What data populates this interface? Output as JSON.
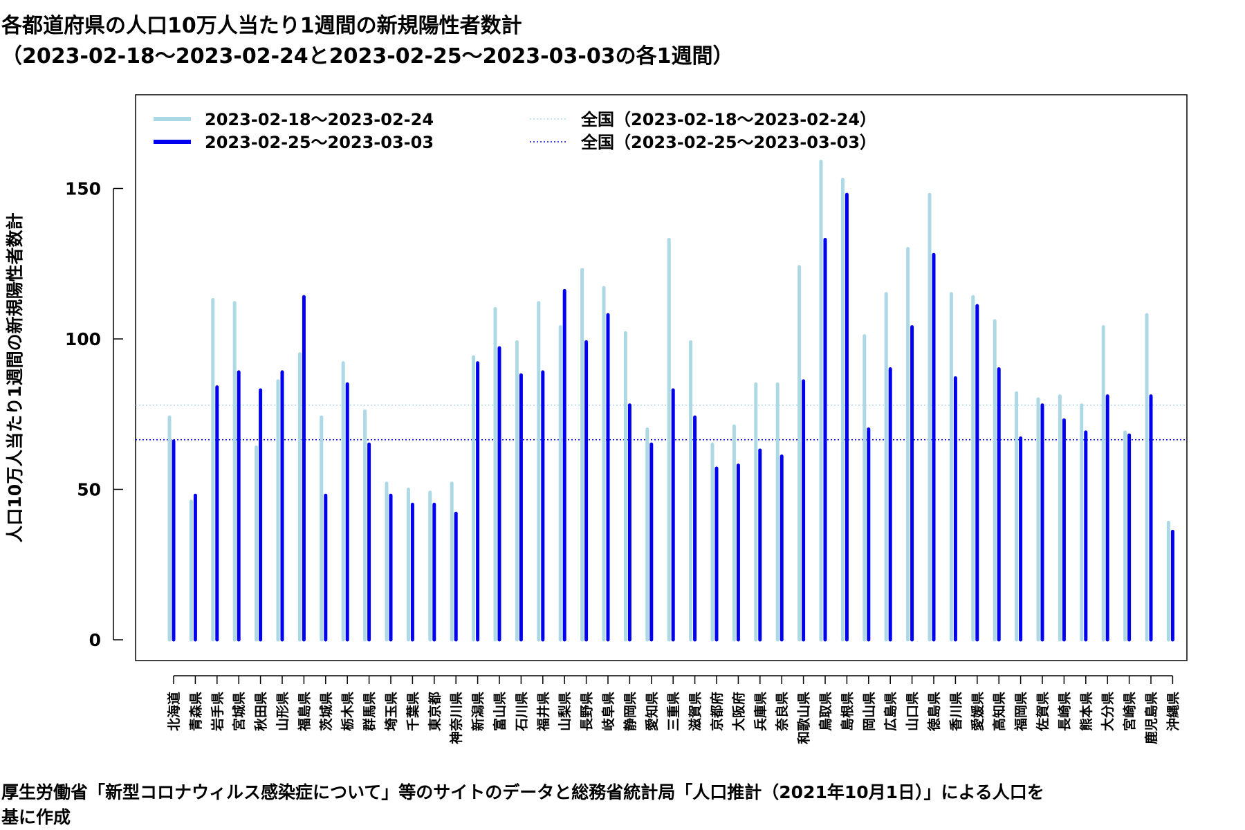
{
  "title_line1": "各都道府県の人口10万人当たり1週間の新規陽性者数計",
  "title_line2": "（2023-02-18～2023-02-24と2023-02-25～2023-03-03の各1週間）",
  "footer_line1": "厚生労働省「新型コロナウィルス感染症について」等のサイトのデータと総務省統計局「人口推計（2021年10月1日）」による人口を",
  "footer_line2": "基に作成",
  "chart_data": {
    "type": "bar",
    "title": "各都道府県の人口10万人当たり1週間の新規陽性者数計",
    "subtitle": "（2023-02-18～2023-02-24と2023-02-25～2023-03-03の各1週間）",
    "xlabel": "",
    "ylabel": "人口10万人当たり1週間の新規陽性者数計",
    "ylim": [
      0,
      175
    ],
    "yticks": [
      0,
      50,
      100,
      150
    ],
    "legend_position": "top-left",
    "categories": [
      "北海道",
      "青森県",
      "岩手県",
      "宮城県",
      "秋田県",
      "山形県",
      "福島県",
      "茨城県",
      "栃木県",
      "群馬県",
      "埼玉県",
      "千葉県",
      "東京都",
      "神奈川県",
      "新潟県",
      "富山県",
      "石川県",
      "福井県",
      "山梨県",
      "長野県",
      "岐阜県",
      "静岡県",
      "愛知県",
      "三重県",
      "滋賀県",
      "京都府",
      "大阪府",
      "兵庫県",
      "奈良県",
      "和歌山県",
      "鳥取県",
      "島根県",
      "岡山県",
      "広島県",
      "山口県",
      "徳島県",
      "香川県",
      "愛媛県",
      "高知県",
      "福岡県",
      "佐賀県",
      "長崎県",
      "熊本県",
      "大分県",
      "宮崎県",
      "鹿児島県",
      "沖縄県"
    ],
    "series": [
      {
        "name": "2023-02-18～2023-02-24",
        "color": "#add8e6",
        "values": [
          74,
          46,
          113,
          112,
          64,
          86,
          95,
          74,
          92,
          76,
          52,
          50,
          49,
          52,
          94,
          110,
          99,
          112,
          104,
          123,
          117,
          102,
          70,
          133,
          99,
          65,
          71,
          85,
          85,
          124,
          159,
          153,
          101,
          115,
          130,
          148,
          115,
          114,
          106,
          82,
          80,
          81,
          78,
          104,
          69,
          108,
          39
        ]
      },
      {
        "name": "2023-02-25～2023-03-03",
        "color": "#0000ee",
        "values": [
          66,
          48,
          84,
          89,
          83,
          89,
          114,
          48,
          85,
          65,
          48,
          45,
          45,
          42,
          92,
          97,
          88,
          89,
          116,
          99,
          108,
          78,
          65,
          83,
          74,
          57,
          58,
          63,
          61,
          86,
          133,
          148,
          70,
          90,
          104,
          128,
          87,
          111,
          90,
          67,
          78,
          73,
          69,
          81,
          68,
          81,
          36
        ]
      }
    ],
    "reference_lines": [
      {
        "name": "全国（2023-02-18～2023-02-24）",
        "value": 78,
        "color": "#add8e6",
        "style": "dotted"
      },
      {
        "name": "全国（2023-02-25～2023-03-03）",
        "value": 66.5,
        "color": "#0000ee",
        "style": "dotted"
      }
    ]
  }
}
